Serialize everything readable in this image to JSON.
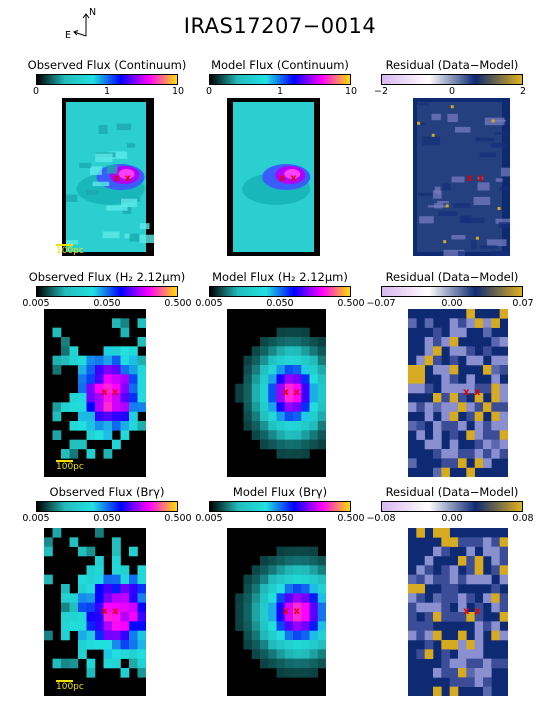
{
  "title": "IRAS17207−0014",
  "compass": {
    "north": "N",
    "east": "E"
  },
  "colors": {
    "cmap_flux": [
      "#000000",
      "#22bcbc",
      "#22e0e0",
      "#0000ff",
      "#ff00ff",
      "#ffe000"
    ],
    "cmap_resid": [
      "#d9b6f0",
      "#ffffff",
      "#0d2a73",
      "#e0b020"
    ],
    "marker": "#e00000",
    "scale": "#f0e000"
  },
  "rows": [
    {
      "titles": [
        "Observed Flux (Continuum)",
        "Model Flux (Continuum)",
        "Residual (Data−Model)"
      ],
      "flux_ticks": [
        "0",
        "1",
        "10"
      ],
      "resid_ticks": [
        "−2",
        "0",
        "2"
      ],
      "scale_label": "100pc"
    },
    {
      "titles": [
        "Observed Flux (H₂ 2.12μm)",
        "Model Flux (H₂ 2.12μm)",
        "Residual (Data−Model)"
      ],
      "flux_ticks": [
        "0.005",
        "0.050",
        "0.500"
      ],
      "resid_ticks": [
        "−0.07",
        "0.00",
        "0.07"
      ],
      "scale_label": "100pc"
    },
    {
      "titles": [
        "Observed Flux (Brγ)",
        "Model Flux (Brγ)",
        "Residual (Data−Model)"
      ],
      "flux_ticks": [
        "0.005",
        "0.050",
        "0.500"
      ],
      "resid_ticks": [
        "−0.08",
        "0.00",
        "0.08"
      ],
      "scale_label": "100pc"
    }
  ],
  "marker_symbol": "x"
}
